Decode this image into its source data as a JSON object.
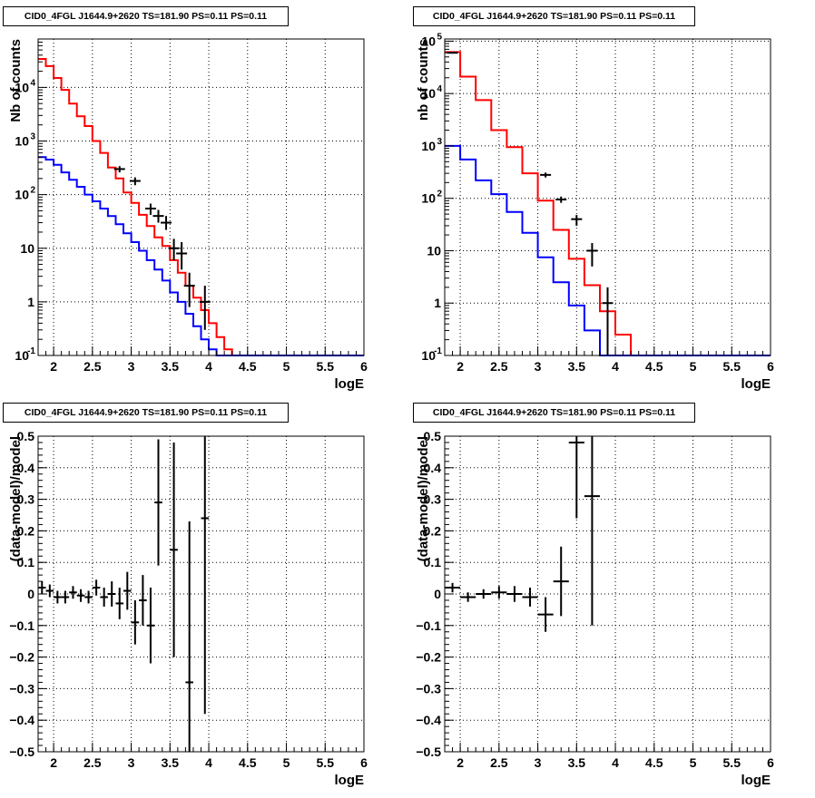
{
  "chart_data": [
    {
      "type": "line",
      "title": "CID0_4FGL J1644.9+2620 TS=181.90 PS=0.11 PS=0.11",
      "xlabel": "logE",
      "ylabel": "Nb of counts",
      "yscale": "log",
      "xlim": [
        1.8,
        6
      ],
      "ylim": [
        0.1,
        80000
      ],
      "xticks": [
        2,
        2.5,
        3,
        3.5,
        4,
        4.5,
        5,
        5.5,
        6
      ],
      "xtick_labels": [
        "2",
        "2.5",
        "3",
        "3.5",
        "4",
        "4.5",
        "5",
        "5.5",
        "6"
      ],
      "yticks": [
        0.1,
        1,
        10,
        100,
        1000,
        10000
      ],
      "ytick_labels": [
        "10^-1",
        "1",
        "10",
        "10^2",
        "10^3",
        "10^4"
      ],
      "grid": true,
      "bin_edges": [
        1.8,
        1.9,
        2.0,
        2.1,
        2.2,
        2.3,
        2.4,
        2.5,
        2.6,
        2.7,
        2.8,
        2.9,
        3.0,
        3.1,
        3.2,
        3.3,
        3.4,
        3.5,
        3.6,
        3.7,
        3.8,
        3.9,
        4.0,
        4.1,
        4.2,
        4.3,
        4.4,
        4.5,
        4.6,
        4.7,
        4.8,
        4.9,
        5.0,
        5.1,
        5.2,
        5.3,
        5.4,
        5.5,
        5.6,
        5.7,
        5.8,
        5.9,
        6.0
      ],
      "series": [
        {
          "color": "#ff0000",
          "style": "step",
          "values": [
            34000,
            25000,
            15000,
            9000,
            5000,
            2900,
            1900,
            1000,
            600,
            320,
            200,
            110,
            70,
            42,
            26,
            16,
            11,
            6,
            3.5,
            2,
            1.2,
            0.7,
            0.4,
            0.22,
            0.13,
            0.1,
            0.1,
            0.1,
            0.1,
            0.1,
            0.1,
            0.1,
            0.1,
            0.1,
            0.1,
            0.1,
            0.1,
            0.1,
            0.1,
            0.1,
            0.1,
            0.1
          ]
        },
        {
          "color": "#0000ff",
          "style": "step",
          "values": [
            500,
            450,
            360,
            260,
            190,
            140,
            100,
            75,
            55,
            40,
            28,
            19,
            13,
            9,
            6,
            4,
            2.5,
            1.5,
            1,
            0.6,
            0.35,
            0.2,
            0.13,
            0.1,
            0.1,
            0.1,
            0.1,
            0.1,
            0.1,
            0.1,
            0.1,
            0.1,
            0.1,
            0.1,
            0.1,
            0.1,
            0.1,
            0.1,
            0.1,
            0.1,
            0.1,
            0.1
          ]
        },
        {
          "color": "#000000",
          "style": "errorbar",
          "x": [
            2.85,
            3.05,
            3.25,
            3.35,
            3.45,
            3.55,
            3.65,
            3.75,
            3.95
          ],
          "y": [
            300,
            180,
            55,
            40,
            30,
            10,
            8,
            2,
            1
          ],
          "ylow": [
            260,
            150,
            42,
            30,
            22,
            6,
            4,
            0.8,
            0.3
          ],
          "yhigh": [
            340,
            210,
            68,
            52,
            40,
            15,
            13,
            3.5,
            2
          ]
        }
      ]
    },
    {
      "type": "line",
      "title": "CID0_4FGL J1644.9+2620 TS=181.90 PS=0.11 PS=0.11",
      "xlabel": "logE",
      "ylabel": "nb of counts",
      "yscale": "log",
      "xlim": [
        1.8,
        6
      ],
      "ylim": [
        0.1,
        110000
      ],
      "xticks": [
        2,
        2.5,
        3,
        3.5,
        4,
        4.5,
        5,
        5.5,
        6
      ],
      "xtick_labels": [
        "2",
        "2.5",
        "3",
        "3.5",
        "4",
        "4.5",
        "5",
        "5.5",
        "6"
      ],
      "yticks": [
        0.1,
        1,
        10,
        100,
        1000,
        10000,
        100000
      ],
      "ytick_labels": [
        "10^-1",
        "1",
        "10",
        "10^2",
        "10^3",
        "10^4",
        "10^5"
      ],
      "grid": true,
      "bin_edges": [
        1.8,
        2.0,
        2.2,
        2.4,
        2.6,
        2.8,
        3.0,
        3.2,
        3.4,
        3.6,
        3.8,
        4.0,
        4.2,
        4.4,
        4.6,
        4.8,
        5.0,
        5.2,
        5.4,
        5.6,
        5.8,
        6.0
      ],
      "series": [
        {
          "color": "#ff0000",
          "style": "step",
          "values": [
            62000,
            21000,
            7500,
            2000,
            950,
            300,
            90,
            25,
            7,
            2.2,
            0.7,
            0.25,
            0.1,
            0.1,
            0.1,
            0.1,
            0.1,
            0.1,
            0.1,
            0.1,
            0.1
          ]
        },
        {
          "color": "#0000ff",
          "style": "step",
          "values": [
            1000,
            550,
            220,
            120,
            55,
            22,
            7.5,
            2.5,
            0.9,
            0.3,
            0.1,
            0.1,
            0.1,
            0.1,
            0.1,
            0.1,
            0.1,
            0.1,
            0.1,
            0.1,
            0.1
          ]
        },
        {
          "color": "#000000",
          "style": "errorbar",
          "x": [
            1.9,
            3.1,
            3.3,
            3.5,
            3.7,
            3.9
          ],
          "y": [
            60000,
            280,
            95,
            40,
            10,
            1
          ],
          "ylow": [
            58000,
            250,
            82,
            30,
            5,
            0.1
          ],
          "yhigh": [
            62000,
            310,
            108,
            48,
            14,
            2
          ]
        }
      ]
    },
    {
      "type": "scatter",
      "title": "CID0_4FGL J1644.9+2620 TS=181.90 PS=0.11 PS=0.11",
      "xlabel": "logE",
      "ylabel": "(data-model)/model",
      "xlim": [
        1.8,
        6
      ],
      "ylim": [
        -0.5,
        0.5
      ],
      "xticks": [
        2,
        2.5,
        3,
        3.5,
        4,
        4.5,
        5,
        5.5,
        6
      ],
      "xtick_labels": [
        "2",
        "2.5",
        "3",
        "3.5",
        "4",
        "4.5",
        "5",
        "5.5",
        "6"
      ],
      "yticks": [
        -0.5,
        -0.4,
        -0.3,
        -0.2,
        -0.1,
        0,
        0.1,
        0.2,
        0.3,
        0.4,
        0.5
      ],
      "ytick_labels": [
        "−0.5",
        "−0.4",
        "−0.3",
        "−0.2",
        "−0.1",
        "0",
        "0.1",
        "0.2",
        "0.3",
        "0.4",
        "0.5"
      ],
      "grid": true,
      "series": [
        {
          "color": "#000000",
          "style": "errorbar",
          "xerr": 0.05,
          "x": [
            1.85,
            1.95,
            2.05,
            2.15,
            2.25,
            2.35,
            2.45,
            2.55,
            2.65,
            2.75,
            2.85,
            2.95,
            3.05,
            3.15,
            3.25,
            3.35,
            3.55,
            3.75,
            3.95
          ],
          "y": [
            0.02,
            0.01,
            -0.01,
            -0.01,
            0.005,
            -0.005,
            -0.01,
            0.02,
            -0.01,
            0.0,
            -0.03,
            0.01,
            -0.09,
            -0.02,
            -0.1,
            0.29,
            0.14,
            -0.28,
            0.24
          ],
          "err": [
            0.02,
            0.02,
            0.02,
            0.02,
            0.02,
            0.02,
            0.02,
            0.025,
            0.03,
            0.04,
            0.05,
            0.06,
            0.07,
            0.08,
            0.12,
            0.2,
            0.34,
            0.51,
            0.62
          ]
        }
      ]
    },
    {
      "type": "scatter",
      "title": "CID0_4FGL J1644.9+2620 TS=181.90 PS=0.11 PS=0.11",
      "xlabel": "logE",
      "ylabel": "(data-model)/model",
      "xlim": [
        1.8,
        6
      ],
      "ylim": [
        -0.5,
        0.5
      ],
      "xticks": [
        2,
        2.5,
        3,
        3.5,
        4,
        4.5,
        5,
        5.5,
        6
      ],
      "xtick_labels": [
        "2",
        "2.5",
        "3",
        "3.5",
        "4",
        "4.5",
        "5",
        "5.5",
        "6"
      ],
      "yticks": [
        -0.5,
        -0.4,
        -0.3,
        -0.2,
        -0.1,
        0,
        0.1,
        0.2,
        0.3,
        0.4,
        0.5
      ],
      "ytick_labels": [
        "−0.5",
        "−0.4",
        "−0.3",
        "−0.2",
        "−0.1",
        "0",
        "0.1",
        "0.2",
        "0.3",
        "0.4",
        "0.5"
      ],
      "grid": true,
      "series": [
        {
          "color": "#000000",
          "style": "errorbar",
          "xerr": 0.1,
          "x": [
            1.9,
            2.1,
            2.3,
            2.5,
            2.7,
            2.9,
            3.1,
            3.3,
            3.5,
            3.7
          ],
          "y": [
            0.02,
            -0.01,
            0.0,
            0.005,
            0.0,
            -0.01,
            -0.065,
            0.04,
            0.48,
            0.31
          ],
          "err": [
            0.015,
            0.015,
            0.015,
            0.02,
            0.025,
            0.03,
            0.055,
            0.11,
            0.24,
            0.41
          ]
        }
      ]
    }
  ]
}
